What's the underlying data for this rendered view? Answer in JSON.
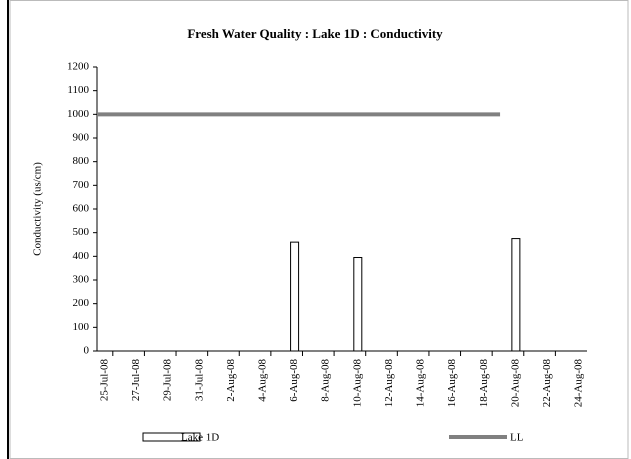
{
  "chart_data": {
    "type": "bar",
    "title": "Fresh Water Quality : Lake 1D  : Conductivity",
    "y_label": "Conductivity (us/cm)",
    "categories": [
      "25-Jul-08",
      null,
      "27-Jul-08",
      null,
      "29-Jul-08",
      null,
      "31-Jul-08",
      null,
      "2-Aug-08",
      null,
      "4-Aug-08",
      null,
      "6-Aug-08",
      null,
      "8-Aug-08",
      null,
      "10-Aug-08",
      null,
      "12-Aug-08",
      null,
      "14-Aug-08",
      null,
      "16-Aug-08",
      null,
      "18-Aug-08",
      null,
      "20-Aug-08",
      null,
      "22-Aug-08",
      null,
      "24-Aug-08"
    ],
    "series": [
      {
        "name": "Lake 1D",
        "type": "bar",
        "color": "#ffffff",
        "values": [
          null,
          null,
          null,
          null,
          null,
          null,
          null,
          null,
          null,
          null,
          null,
          null,
          460,
          null,
          null,
          null,
          395,
          null,
          null,
          null,
          null,
          null,
          null,
          null,
          null,
          null,
          475,
          null,
          null,
          null,
          null
        ]
      },
      {
        "name": "LL",
        "type": "line",
        "color": "#808080",
        "values": [
          1000,
          1000,
          1000,
          1000,
          1000,
          1000,
          1000,
          1000,
          1000,
          1000,
          1000,
          1000,
          1000,
          1000,
          1000,
          1000,
          1000,
          1000,
          1000,
          1000,
          1000,
          1000,
          1000,
          1000,
          1000,
          1000,
          null,
          null,
          null,
          null,
          null
        ]
      }
    ],
    "ylim": [
      0,
      1200
    ],
    "yticks": [
      0,
      100,
      200,
      300,
      400,
      500,
      600,
      700,
      800,
      900,
      1000,
      1100,
      1200
    ],
    "grid": false
  }
}
